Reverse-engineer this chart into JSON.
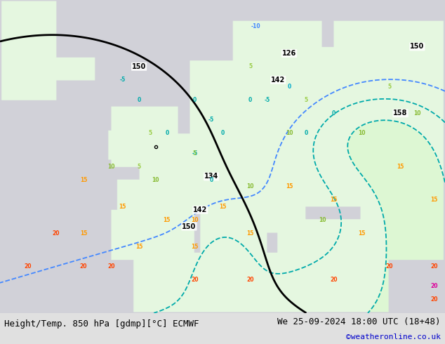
{
  "title_left": "Height/Temp. 850 hPa [gdmp][°C] ECMWF",
  "title_right": "We 25-09-2024 18:00 UTC (18+48)",
  "copyright": "©weatheronline.co.uk",
  "text_color": "#000000",
  "copyright_color": "#0000cc",
  "font_size_title": 9,
  "font_size_copyright": 8,
  "fig_width": 6.34,
  "fig_height": 4.9,
  "dpi": 100,
  "bottom_bar_color": "#e0e0e0",
  "sea_color": "#d8d8e8",
  "land_color_warm": "#c8ecc0",
  "land_color_cold": "#e8f8e8",
  "map_bg": "#d0d0d8"
}
